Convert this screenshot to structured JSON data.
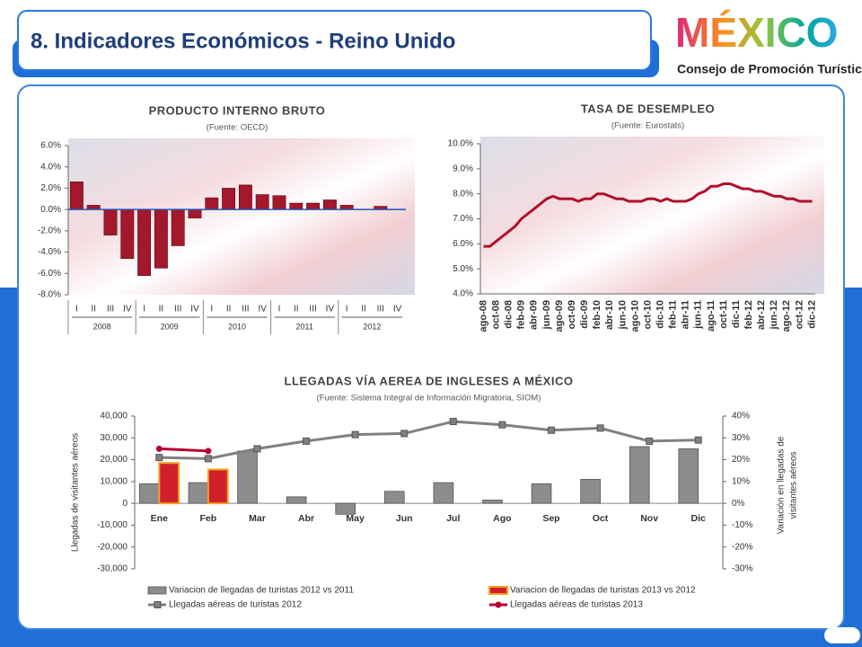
{
  "header": {
    "title": "8. Indicadores Económicos  - Reino Unido",
    "logo": "MÉXICO",
    "logo_subtitle": "Consejo de Promoción Turística"
  },
  "chart_data": [
    {
      "type": "bar",
      "title": "PRODUCTO INTERNO BRUTO",
      "subtitle": "(Fuente: OECD)",
      "categories": [
        "I",
        "II",
        "III",
        "IV",
        "I",
        "II",
        "III",
        "IV",
        "I",
        "II",
        "III",
        "IV",
        "I",
        "II",
        "III",
        "IV",
        "I",
        "II",
        "III",
        "IV"
      ],
      "category_groups": [
        "2008",
        "2009",
        "2010",
        "2011",
        "2012"
      ],
      "values": [
        2.6,
        0.4,
        -2.4,
        -4.6,
        -6.2,
        -5.5,
        -3.4,
        -0.8,
        1.1,
        2.0,
        2.3,
        1.4,
        1.3,
        0.6,
        0.6,
        0.9,
        0.4,
        0.0,
        0.3,
        0.0
      ],
      "color": "#a3182b",
      "ylim": [
        -8,
        6
      ],
      "yticks": [
        {
          "value": -8,
          "label": "-8.0%"
        },
        {
          "value": -6,
          "label": "-6.0%"
        },
        {
          "value": -4,
          "label": "-4.0%"
        },
        {
          "value": -2,
          "label": "-2.0%"
        },
        {
          "value": 0,
          "label": "0.0%"
        },
        {
          "value": 2,
          "label": "2.0%"
        },
        {
          "value": 4,
          "label": "4.0%"
        },
        {
          "value": 6,
          "label": "6.0%"
        }
      ]
    },
    {
      "type": "line",
      "title": "TASA DE DESEMPLEO",
      "subtitle": "(Fuente: Eurostats)",
      "categories": [
        "ago-08",
        null,
        "oct-08",
        null,
        "dic-08",
        null,
        "feb-09",
        null,
        "abr-09",
        null,
        "jun-09",
        null,
        "ago-09",
        null,
        "oct-09",
        null,
        "dic-09",
        null,
        "feb-10",
        null,
        "abr-10",
        null,
        "jun-10",
        null,
        "ago-10",
        null,
        "oct-10",
        null,
        "dic-10",
        null,
        "feb-11",
        null,
        "abr-11",
        null,
        "jun-11",
        null,
        "ago-11",
        null,
        "oct-11",
        null,
        "dic-11",
        null,
        "feb-12",
        null,
        "abr-12",
        null,
        "jun-12",
        null,
        "ago-12",
        null,
        "oct-12",
        null,
        "dic-12"
      ],
      "values": [
        5.9,
        5.9,
        6.1,
        6.3,
        6.5,
        6.7,
        7.0,
        7.2,
        7.4,
        7.6,
        7.8,
        7.9,
        7.8,
        7.8,
        7.8,
        7.7,
        7.8,
        7.8,
        8.0,
        8.0,
        7.9,
        7.8,
        7.8,
        7.7,
        7.7,
        7.7,
        7.8,
        7.8,
        7.7,
        7.8,
        7.7,
        7.7,
        7.7,
        7.8,
        8.0,
        8.1,
        8.3,
        8.3,
        8.4,
        8.4,
        8.3,
        8.2,
        8.2,
        8.1,
        8.1,
        8.0,
        7.9,
        7.9,
        7.8,
        7.8,
        7.7,
        7.7,
        7.7
      ],
      "color": "#b0112b",
      "ylim": [
        4,
        10
      ],
      "yticks": [
        {
          "value": 4,
          "label": "4.0%"
        },
        {
          "value": 5,
          "label": "5.0%"
        },
        {
          "value": 6,
          "label": "6.0%"
        },
        {
          "value": 7,
          "label": "7.0%"
        },
        {
          "value": 8,
          "label": "8.0%"
        },
        {
          "value": 9,
          "label": "9.0%"
        },
        {
          "value": 10,
          "label": "10.0%"
        }
      ]
    },
    {
      "type": "combo",
      "title": "LLEGADAS VÍA AEREA DE INGLESES A MÉXICO",
      "subtitle": "(Fuente: Sistema Integral de Información Migratoria, SIOM)",
      "ylabel": "Llegadas de visitantes aéreos",
      "y2label": [
        "Variación en llegadas de",
        "visitantes aéreos"
      ],
      "categories": [
        "Ene",
        "Feb",
        "Mar",
        "Abr",
        "May",
        "Jun",
        "Jul",
        "Ago",
        "Sep",
        "Oct",
        "Nov",
        "Dic"
      ],
      "series": [
        {
          "name": "Variacion de llegadas de turistas 2012 vs 2011",
          "type": "bar",
          "color": "#8c8c8c",
          "values": [
            9000,
            9500,
            24000,
            3000,
            -5000,
            5500,
            9500,
            1500,
            9000,
            11000,
            26000,
            25000
          ]
        },
        {
          "name": "Variacion de llegadas de turistas 2013 vs 2012",
          "type": "bar",
          "color": "#d0202c",
          "values": [
            18500,
            15500,
            null,
            null,
            null,
            null,
            null,
            null,
            null,
            null,
            null,
            null
          ]
        },
        {
          "name": "Llegadas aéreas de turistas 2012",
          "type": "line",
          "axis": "y2",
          "color": "#808080",
          "values": [
            21,
            20.5,
            25,
            28.5,
            31.5,
            32,
            37.5,
            36,
            33.5,
            34.5,
            28.5,
            29
          ]
        },
        {
          "name": "Llegadas aéreas de turistas 2013",
          "type": "line",
          "axis": "y2",
          "color": "#b80030",
          "values": [
            25,
            24,
            null,
            null,
            null,
            null,
            null,
            null,
            null,
            null,
            null,
            null
          ]
        }
      ],
      "ylim": [
        -30000,
        40000
      ],
      "yticks": [
        {
          "value": -30000,
          "label": "-30,000"
        },
        {
          "value": -20000,
          "label": "-20,000"
        },
        {
          "value": -10000,
          "label": "-10,000"
        },
        0,
        {
          "value": 10000,
          "label": "10,000"
        },
        {
          "value": 20000,
          "label": "20,000"
        },
        {
          "value": 30000,
          "label": "30,000"
        },
        {
          "value": 40000,
          "label": "40,000"
        }
      ],
      "y2lim": [
        -30,
        40
      ],
      "y2ticks": [
        {
          "value": -30,
          "label": "-30%"
        },
        {
          "value": -20,
          "label": "-20%"
        },
        {
          "value": -10,
          "label": "-10%"
        },
        {
          "value": 0,
          "label": "0%"
        },
        {
          "value": 10,
          "label": "10%"
        },
        {
          "value": 20,
          "label": "20%"
        },
        {
          "value": 30,
          "label": "30%"
        },
        {
          "value": 40,
          "label": "40%"
        }
      ]
    }
  ]
}
